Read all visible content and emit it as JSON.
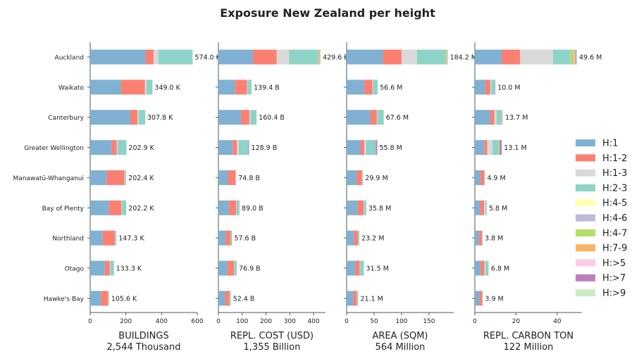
{
  "chart_data": {
    "type": "bar",
    "orientation": "horizontal",
    "stacked": true,
    "title": "Exposure New Zealand per height",
    "categories": [
      "Auckland",
      "Waikato",
      "Canterbury",
      "Greater Wellington",
      "Manawatū-Whanganui",
      "Bay of Plenty",
      "Northland",
      "Otago",
      "Hawke's Bay"
    ],
    "height_classes": [
      "H:1",
      "H:1-2",
      "H:1-3",
      "H:2-3",
      "H:4-5",
      "H:4-6",
      "H:4-7",
      "H:7-9",
      "H:>5",
      "H:>7",
      "H:>9"
    ],
    "colors": [
      "#80b1d3",
      "#fb8072",
      "#d9d9d9",
      "#8dd3c7",
      "#ffffb3",
      "#bebada",
      "#b3de69",
      "#fdb462",
      "#fccde5",
      "#bc80bd",
      "#ccebc5"
    ],
    "legend_placement": "center-right",
    "grid": false,
    "panels": [
      {
        "xlabel": "BUILDINGS",
        "total": "2,544 Thousand",
        "xlim": [
          0,
          600
        ],
        "xticks": [
          0,
          200,
          400,
          600
        ],
        "totals_labels": [
          "574.0 K",
          "349.0 K",
          "307.8 K",
          "202.9 K",
          "202.4 K",
          "202.2 K",
          "147.3 K",
          "133.3 K",
          "105.6 K"
        ],
        "values": [
          [
            310,
            45,
            28,
            191,
            0,
            0,
            0,
            0,
            0,
            0,
            0
          ],
          [
            172,
            135,
            8,
            34,
            0,
            0,
            0,
            0,
            0,
            0,
            0
          ],
          [
            225,
            40,
            7,
            36,
            0,
            0,
            0,
            0,
            0,
            0,
            0
          ],
          [
            120,
            28,
            6,
            49,
            0,
            0,
            0,
            0,
            0,
            0,
            0
          ],
          [
            92,
            100,
            4,
            6,
            0,
            0,
            0,
            0,
            0,
            0,
            0
          ],
          [
            105,
            70,
            3,
            24,
            0,
            0,
            0,
            0,
            0,
            0,
            0
          ],
          [
            70,
            68,
            3,
            6,
            0,
            0,
            0,
            0,
            0,
            0,
            0
          ],
          [
            82,
            28,
            3,
            20,
            0,
            0,
            0,
            0,
            0,
            0,
            0
          ],
          [
            60,
            40,
            2,
            4,
            0,
            0,
            0,
            0,
            0,
            0,
            0
          ]
        ]
      },
      {
        "xlabel": "REPL. COST (USD)",
        "total": "1,355 Billion",
        "xlim": [
          0,
          450
        ],
        "xticks": [
          0,
          100,
          200,
          300,
          400
        ],
        "totals_labels": [
          "429.6 B",
          "139.4 B",
          "160.4 B",
          "128.9 B",
          "74.8 B",
          "89.0 B",
          "57.6 B",
          "76.9 B",
          "52.4 B"
        ],
        "values": [
          [
            145,
            100,
            52,
            117,
            0,
            8,
            5,
            2,
            0,
            0,
            0.6
          ],
          [
            70,
            50,
            3,
            16.4,
            0,
            0,
            0,
            0,
            0,
            0,
            0
          ],
          [
            95,
            35,
            5,
            25.4,
            0,
            0,
            0,
            0,
            0,
            0,
            0
          ],
          [
            60,
            18,
            8,
            40,
            0,
            0,
            0,
            0,
            0,
            2.9,
            0
          ],
          [
            40,
            32,
            1,
            1.8,
            0,
            0,
            0,
            0,
            0,
            0,
            0
          ],
          [
            45,
            30,
            2,
            12,
            0,
            0,
            0,
            0,
            0,
            0,
            0
          ],
          [
            30,
            22,
            1,
            4.6,
            0,
            0,
            0,
            0,
            0,
            0,
            0
          ],
          [
            38,
            27,
            1,
            10.9,
            0,
            0,
            0,
            0,
            0,
            0,
            0
          ],
          [
            28,
            18,
            1,
            5.4,
            0,
            0,
            0,
            0,
            0,
            0,
            0
          ]
        ]
      },
      {
        "xlabel": "AREA (SQM)",
        "total": "564 Million",
        "xlim": [
          0,
          195
        ],
        "xticks": [
          0,
          50,
          100,
          150
        ],
        "totals_labels": [
          "184.2 M",
          "56.6 M",
          "67.6 M",
          "55.8 M",
          "29.9 M",
          "35.8 M",
          "23.2 M",
          "31.5 M",
          "21.1 M"
        ],
        "values": [
          [
            66,
            34,
            28,
            52,
            0,
            2,
            1.5,
            0.7,
            0,
            0,
            0
          ],
          [
            32,
            15,
            1,
            8.6,
            0,
            0,
            0,
            0,
            0,
            0,
            0
          ],
          [
            43,
            12,
            1,
            11.6,
            0,
            0,
            0,
            0,
            0,
            0,
            0
          ],
          [
            25,
            7,
            3,
            18,
            0,
            0,
            0,
            0,
            0,
            2.8,
            0
          ],
          [
            18,
            10,
            0.5,
            1.4,
            0,
            0,
            0,
            0,
            0,
            0,
            0
          ],
          [
            20,
            11,
            0.8,
            4,
            0,
            0,
            0,
            0,
            0,
            0,
            0
          ],
          [
            13,
            7.5,
            0.5,
            2.2,
            0,
            0,
            0,
            0,
            0,
            0,
            0
          ],
          [
            16,
            8,
            0.5,
            7,
            0,
            0,
            0,
            0,
            0,
            0,
            0
          ],
          [
            12,
            6.5,
            0.4,
            2.2,
            0,
            0,
            0,
            0,
            0,
            0,
            0
          ]
        ]
      },
      {
        "xlabel": "REPL. CARBON TON",
        "total": "122 Million",
        "xlim": [
          0,
          52
        ],
        "xticks": [
          0,
          20,
          40
        ],
        "totals_labels": [
          "49.6 M",
          "10.0 M",
          "13.7 M",
          "13.1 M",
          "4.9 M",
          "5.8 M",
          "3.8 M",
          "6.8 M",
          "3.9 M"
        ],
        "values": [
          [
            13,
            9,
            16,
            8,
            0,
            0.5,
            1.5,
            0.5,
            0.3,
            0.5,
            0.3
          ],
          [
            5,
            2.5,
            0.5,
            2,
            0,
            0,
            0,
            0,
            0,
            0,
            0
          ],
          [
            7.5,
            2,
            1,
            2.5,
            0,
            0,
            0,
            0.2,
            0.3,
            0,
            0.2
          ],
          [
            4.5,
            1.5,
            2.5,
            3,
            0,
            0,
            0.5,
            0,
            0,
            1.1,
            0
          ],
          [
            2.7,
            1.9,
            0.1,
            0.2,
            0,
            0,
            0,
            0,
            0,
            0,
            0
          ],
          [
            2.5,
            2,
            0.8,
            0.5,
            0,
            0,
            0,
            0,
            0,
            0,
            0
          ],
          [
            2,
            1.5,
            0.1,
            0.2,
            0,
            0,
            0,
            0,
            0,
            0,
            0
          ],
          [
            2.8,
            1.8,
            0.6,
            1.4,
            0,
            0,
            0,
            0,
            0,
            0,
            0.2
          ],
          [
            2.2,
            1.4,
            0.1,
            0.2,
            0,
            0,
            0,
            0,
            0,
            0,
            0
          ]
        ]
      }
    ]
  }
}
